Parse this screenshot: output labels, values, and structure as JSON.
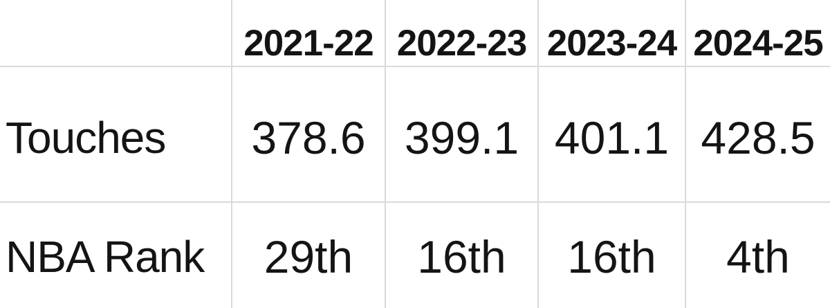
{
  "chart_data": {
    "type": "table",
    "columns": [
      "",
      "2021-22",
      "2022-23",
      "2023-24",
      "2024-25"
    ],
    "rows": [
      {
        "label": "Touches",
        "values": [
          "378.6",
          "399.1",
          "401.1",
          "428.5"
        ]
      },
      {
        "label": "NBA Rank",
        "values": [
          "29th",
          "16th",
          "16th",
          "4th"
        ]
      }
    ]
  },
  "colors": {
    "background": "#ffffff",
    "grid": "#d9d9d9",
    "text": "#141414"
  }
}
